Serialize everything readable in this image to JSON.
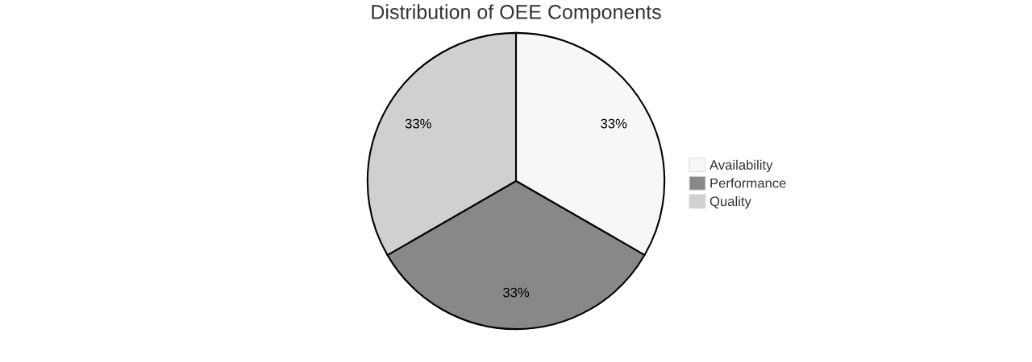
{
  "chart_data": {
    "type": "pie",
    "title": "Distribution of OEE Components",
    "categories": [
      "Availability",
      "Performance",
      "Quality"
    ],
    "values": [
      33.33,
      33.33,
      33.34
    ],
    "value_labels": [
      "33%",
      "33%",
      "33%"
    ],
    "colors": [
      "#f7f7f7",
      "#888888",
      "#d0d0d0"
    ],
    "legend": "right"
  }
}
